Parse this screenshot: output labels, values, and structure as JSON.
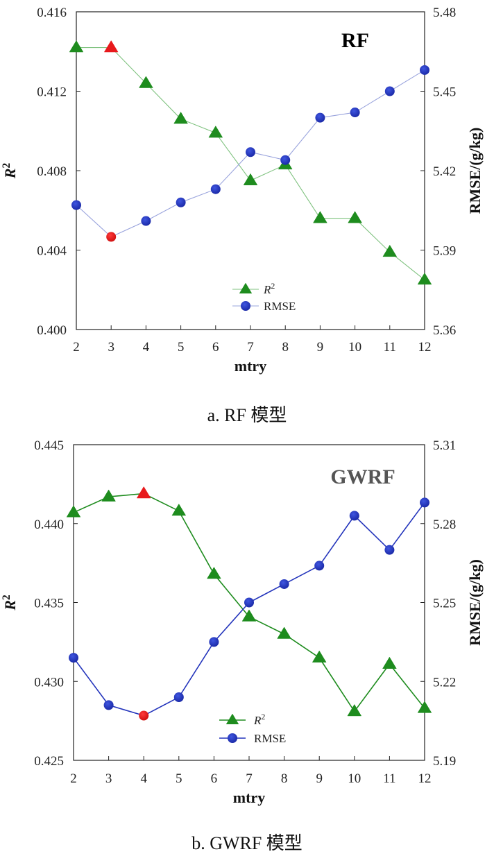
{
  "chart_data": [
    {
      "type": "line",
      "title": "RF",
      "xlabel": "mtry",
      "ylabel": "R2",
      "ylabel_right": "RMSE/(g/kg)",
      "caption": "a. RF 模型",
      "x": [
        2,
        3,
        4,
        5,
        6,
        7,
        8,
        9,
        10,
        11,
        12
      ],
      "x_tick_labels": [
        "2",
        "3",
        "4",
        "5",
        "6",
        "7",
        "8",
        "9",
        "10",
        "11",
        "12"
      ],
      "ylim": [
        0.4,
        0.416
      ],
      "y_ticks": [
        "0.400",
        "0.404",
        "0.408",
        "0.412",
        "0.416"
      ],
      "y2lim": [
        5.36,
        5.48
      ],
      "y2_ticks": [
        "5.36",
        "5.39",
        "5.42",
        "5.45",
        "5.48"
      ],
      "series": [
        {
          "name": "R2",
          "axis": "left",
          "marker": "triangle",
          "color": "#1e8c1e",
          "line_color": "#7fc27f",
          "values": [
            0.4142,
            0.4142,
            0.4124,
            0.4106,
            0.4099,
            0.4075,
            0.4083,
            0.4056,
            0.4056,
            0.4039,
            0.4025
          ],
          "highlight_index": 1
        },
        {
          "name": "RMSE",
          "axis": "right",
          "marker": "circle",
          "color": "#2233bb",
          "line_color": "#9aa4dd",
          "values": [
            5.407,
            5.395,
            5.401,
            5.408,
            5.413,
            5.427,
            5.424,
            5.44,
            5.442,
            5.45,
            5.458
          ],
          "highlight_index": 1
        }
      ],
      "legend": {
        "placement": "bottom-center",
        "entries": [
          "R2",
          "RMSE"
        ]
      }
    },
    {
      "type": "line",
      "title": "GWRF",
      "xlabel": "mtry",
      "ylabel": "R2",
      "ylabel_right": "RMSE/(g/kg)",
      "caption": "b. GWRF 模型",
      "x": [
        2,
        3,
        4,
        5,
        6,
        7,
        8,
        9,
        10,
        11,
        12
      ],
      "x_tick_labels": [
        "2",
        "3",
        "4",
        "5",
        "6",
        "7",
        "8",
        "9",
        "10",
        "11",
        "12"
      ],
      "ylim": [
        0.425,
        0.445
      ],
      "y_ticks": [
        "0.425",
        "0.430",
        "0.435",
        "0.440",
        "0.445"
      ],
      "y2lim": [
        5.19,
        5.31
      ],
      "y2_ticks": [
        "5.19",
        "5.22",
        "5.25",
        "5.28",
        "5.31"
      ],
      "series": [
        {
          "name": "R2",
          "axis": "left",
          "marker": "triangle",
          "color": "#1e8c1e",
          "line_color": "#1e8c1e",
          "values": [
            0.4407,
            0.4417,
            0.4419,
            0.4408,
            0.4368,
            0.4341,
            0.433,
            0.4315,
            0.4281,
            0.4311,
            0.4283
          ],
          "highlight_index": 2
        },
        {
          "name": "RMSE",
          "axis": "right",
          "marker": "circle",
          "color": "#2233bb",
          "line_color": "#2233bb",
          "values": [
            5.229,
            5.211,
            5.207,
            5.214,
            5.235,
            5.25,
            5.257,
            5.264,
            5.283,
            5.27,
            5.288
          ],
          "highlight_index": 2
        }
      ],
      "legend": {
        "placement": "bottom-center",
        "entries": [
          "R2",
          "RMSE"
        ]
      }
    }
  ],
  "colors": {
    "highlight": "#e8191c",
    "title_rf": "#000000",
    "title_gwrf": "#555555"
  }
}
